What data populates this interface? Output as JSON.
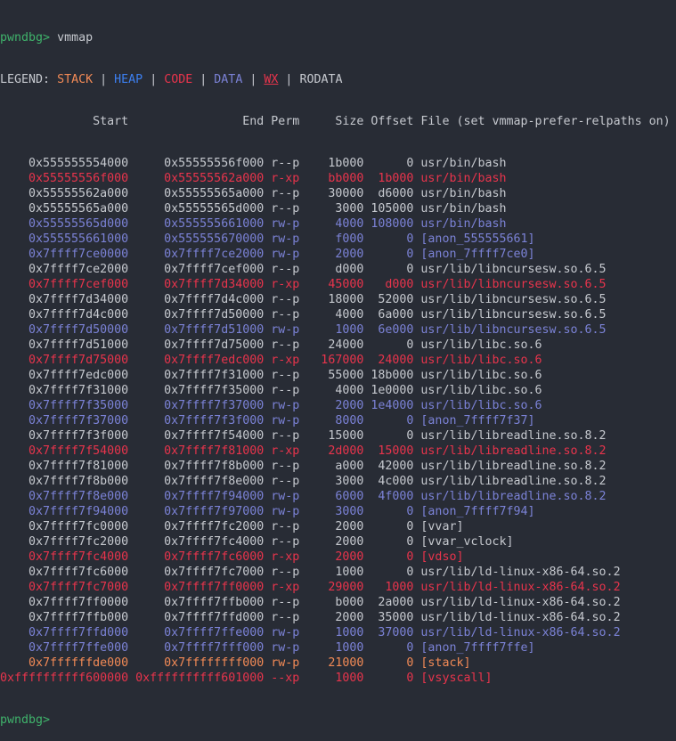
{
  "prompt": "pwndbg>",
  "command": "vmmap",
  "legend": {
    "label": "LEGEND:",
    "items": [
      {
        "text": "STACK",
        "type": "stack"
      },
      {
        "text": "HEAP",
        "type": "heap"
      },
      {
        "text": "CODE",
        "type": "code"
      },
      {
        "text": "DATA",
        "type": "data"
      },
      {
        "text": "WX",
        "type": "wx"
      },
      {
        "text": "RODATA",
        "type": "ro"
      }
    ],
    "separator": "|"
  },
  "colors": {
    "stack": "#f28a56",
    "heap": "#3c7ff0",
    "code": "#e8344c",
    "data": "#7b82d6",
    "ro": "#c6c9cf",
    "prompt": "#3fb36b"
  },
  "headers": {
    "start": "Start",
    "end": "End",
    "perm": "Perm",
    "size": "Size",
    "offset": "Offset",
    "file": "File (set vmmap-prefer-relpaths on)"
  },
  "rows": [
    {
      "start": "0x555555554000",
      "end": "0x55555556f000",
      "perm": "r--p",
      "size": "1b000",
      "offset": "0",
      "file": "usr/bin/bash",
      "type": "ro"
    },
    {
      "start": "0x55555556f000",
      "end": "0x55555562a000",
      "perm": "r-xp",
      "size": "bb000",
      "offset": "1b000",
      "file": "usr/bin/bash",
      "type": "code"
    },
    {
      "start": "0x55555562a000",
      "end": "0x55555565a000",
      "perm": "r--p",
      "size": "30000",
      "offset": "d6000",
      "file": "usr/bin/bash",
      "type": "ro"
    },
    {
      "start": "0x55555565a000",
      "end": "0x55555565d000",
      "perm": "r--p",
      "size": "3000",
      "offset": "105000",
      "file": "usr/bin/bash",
      "type": "ro"
    },
    {
      "start": "0x55555565d000",
      "end": "0x555555661000",
      "perm": "rw-p",
      "size": "4000",
      "offset": "108000",
      "file": "usr/bin/bash",
      "type": "data"
    },
    {
      "start": "0x555555661000",
      "end": "0x555555670000",
      "perm": "rw-p",
      "size": "f000",
      "offset": "0",
      "file": "[anon_555555661]",
      "type": "data"
    },
    {
      "start": "0x7ffff7ce0000",
      "end": "0x7ffff7ce2000",
      "perm": "rw-p",
      "size": "2000",
      "offset": "0",
      "file": "[anon_7ffff7ce0]",
      "type": "data"
    },
    {
      "start": "0x7ffff7ce2000",
      "end": "0x7ffff7cef000",
      "perm": "r--p",
      "size": "d000",
      "offset": "0",
      "file": "usr/lib/libncursesw.so.6.5",
      "type": "ro"
    },
    {
      "start": "0x7ffff7cef000",
      "end": "0x7ffff7d34000",
      "perm": "r-xp",
      "size": "45000",
      "offset": "d000",
      "file": "usr/lib/libncursesw.so.6.5",
      "type": "code"
    },
    {
      "start": "0x7ffff7d34000",
      "end": "0x7ffff7d4c000",
      "perm": "r--p",
      "size": "18000",
      "offset": "52000",
      "file": "usr/lib/libncursesw.so.6.5",
      "type": "ro"
    },
    {
      "start": "0x7ffff7d4c000",
      "end": "0x7ffff7d50000",
      "perm": "r--p",
      "size": "4000",
      "offset": "6a000",
      "file": "usr/lib/libncursesw.so.6.5",
      "type": "ro"
    },
    {
      "start": "0x7ffff7d50000",
      "end": "0x7ffff7d51000",
      "perm": "rw-p",
      "size": "1000",
      "offset": "6e000",
      "file": "usr/lib/libncursesw.so.6.5",
      "type": "data"
    },
    {
      "start": "0x7ffff7d51000",
      "end": "0x7ffff7d75000",
      "perm": "r--p",
      "size": "24000",
      "offset": "0",
      "file": "usr/lib/libc.so.6",
      "type": "ro"
    },
    {
      "start": "0x7ffff7d75000",
      "end": "0x7ffff7edc000",
      "perm": "r-xp",
      "size": "167000",
      "offset": "24000",
      "file": "usr/lib/libc.so.6",
      "type": "code"
    },
    {
      "start": "0x7ffff7edc000",
      "end": "0x7ffff7f31000",
      "perm": "r--p",
      "size": "55000",
      "offset": "18b000",
      "file": "usr/lib/libc.so.6",
      "type": "ro"
    },
    {
      "start": "0x7ffff7f31000",
      "end": "0x7ffff7f35000",
      "perm": "r--p",
      "size": "4000",
      "offset": "1e0000",
      "file": "usr/lib/libc.so.6",
      "type": "ro"
    },
    {
      "start": "0x7ffff7f35000",
      "end": "0x7ffff7f37000",
      "perm": "rw-p",
      "size": "2000",
      "offset": "1e4000",
      "file": "usr/lib/libc.so.6",
      "type": "data"
    },
    {
      "start": "0x7ffff7f37000",
      "end": "0x7ffff7f3f000",
      "perm": "rw-p",
      "size": "8000",
      "offset": "0",
      "file": "[anon_7ffff7f37]",
      "type": "data"
    },
    {
      "start": "0x7ffff7f3f000",
      "end": "0x7ffff7f54000",
      "perm": "r--p",
      "size": "15000",
      "offset": "0",
      "file": "usr/lib/libreadline.so.8.2",
      "type": "ro"
    },
    {
      "start": "0x7ffff7f54000",
      "end": "0x7ffff7f81000",
      "perm": "r-xp",
      "size": "2d000",
      "offset": "15000",
      "file": "usr/lib/libreadline.so.8.2",
      "type": "code"
    },
    {
      "start": "0x7ffff7f81000",
      "end": "0x7ffff7f8b000",
      "perm": "r--p",
      "size": "a000",
      "offset": "42000",
      "file": "usr/lib/libreadline.so.8.2",
      "type": "ro"
    },
    {
      "start": "0x7ffff7f8b000",
      "end": "0x7ffff7f8e000",
      "perm": "r--p",
      "size": "3000",
      "offset": "4c000",
      "file": "usr/lib/libreadline.so.8.2",
      "type": "ro"
    },
    {
      "start": "0x7ffff7f8e000",
      "end": "0x7ffff7f94000",
      "perm": "rw-p",
      "size": "6000",
      "offset": "4f000",
      "file": "usr/lib/libreadline.so.8.2",
      "type": "data"
    },
    {
      "start": "0x7ffff7f94000",
      "end": "0x7ffff7f97000",
      "perm": "rw-p",
      "size": "3000",
      "offset": "0",
      "file": "[anon_7ffff7f94]",
      "type": "data"
    },
    {
      "start": "0x7ffff7fc0000",
      "end": "0x7ffff7fc2000",
      "perm": "r--p",
      "size": "2000",
      "offset": "0",
      "file": "[vvar]",
      "type": "ro"
    },
    {
      "start": "0x7ffff7fc2000",
      "end": "0x7ffff7fc4000",
      "perm": "r--p",
      "size": "2000",
      "offset": "0",
      "file": "[vvar_vclock]",
      "type": "ro"
    },
    {
      "start": "0x7ffff7fc4000",
      "end": "0x7ffff7fc6000",
      "perm": "r-xp",
      "size": "2000",
      "offset": "0",
      "file": "[vdso]",
      "type": "code"
    },
    {
      "start": "0x7ffff7fc6000",
      "end": "0x7ffff7fc7000",
      "perm": "r--p",
      "size": "1000",
      "offset": "0",
      "file": "usr/lib/ld-linux-x86-64.so.2",
      "type": "ro"
    },
    {
      "start": "0x7ffff7fc7000",
      "end": "0x7ffff7ff0000",
      "perm": "r-xp",
      "size": "29000",
      "offset": "1000",
      "file": "usr/lib/ld-linux-x86-64.so.2",
      "type": "code"
    },
    {
      "start": "0x7ffff7ff0000",
      "end": "0x7ffff7ffb000",
      "perm": "r--p",
      "size": "b000",
      "offset": "2a000",
      "file": "usr/lib/ld-linux-x86-64.so.2",
      "type": "ro"
    },
    {
      "start": "0x7ffff7ffb000",
      "end": "0x7ffff7ffd000",
      "perm": "r--p",
      "size": "2000",
      "offset": "35000",
      "file": "usr/lib/ld-linux-x86-64.so.2",
      "type": "ro"
    },
    {
      "start": "0x7ffff7ffd000",
      "end": "0x7ffff7ffe000",
      "perm": "rw-p",
      "size": "1000",
      "offset": "37000",
      "file": "usr/lib/ld-linux-x86-64.so.2",
      "type": "data"
    },
    {
      "start": "0x7ffff7ffe000",
      "end": "0x7ffff7fff000",
      "perm": "rw-p",
      "size": "1000",
      "offset": "0",
      "file": "[anon_7ffff7ffe]",
      "type": "data"
    },
    {
      "start": "0x7ffffffde000",
      "end": "0x7ffffffff000",
      "perm": "rw-p",
      "size": "21000",
      "offset": "0",
      "file": "[stack]",
      "type": "stack"
    },
    {
      "start": "0xffffffffff600000",
      "end": "0xffffffffff601000",
      "perm": "--xp",
      "size": "1000",
      "offset": "0",
      "file": "[vsyscall]",
      "type": "code"
    }
  ]
}
